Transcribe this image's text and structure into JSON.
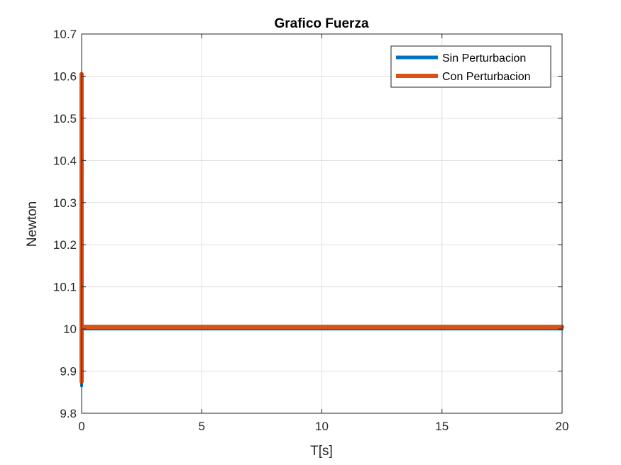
{
  "chart_data": {
    "type": "line",
    "title": "Grafico Fuerza",
    "xlabel": "T[s]",
    "ylabel": "Newton",
    "xlim": [
      0,
      20
    ],
    "ylim": [
      9.8,
      10.7
    ],
    "xticks": [
      0,
      5,
      10,
      15,
      20
    ],
    "xtick_labels": [
      "0",
      "5",
      "10",
      "15",
      "20"
    ],
    "yticks": [
      9.8,
      9.9,
      10,
      10.1,
      10.2,
      10.3,
      10.4,
      10.5,
      10.6,
      10.7
    ],
    "ytick_labels": [
      "9.8",
      "9.9",
      "10",
      "10.1",
      "10.2",
      "10.3",
      "10.4",
      "10.5",
      "10.6",
      "10.7"
    ],
    "grid": true,
    "legend_position": "top-right",
    "series": [
      {
        "name": "Sin Perturbacion",
        "color": "#0072bd",
        "x": [
          0,
          0,
          0,
          0.02,
          20
        ],
        "y": [
          10.0,
          9.865,
          10.0,
          10.0,
          10.0
        ]
      },
      {
        "name": "Con Perturbacion",
        "color": "#d95319",
        "x": [
          0,
          0,
          0,
          0.02,
          20
        ],
        "y": [
          9.875,
          10.605,
          10.005,
          10.005,
          10.005
        ]
      }
    ]
  }
}
